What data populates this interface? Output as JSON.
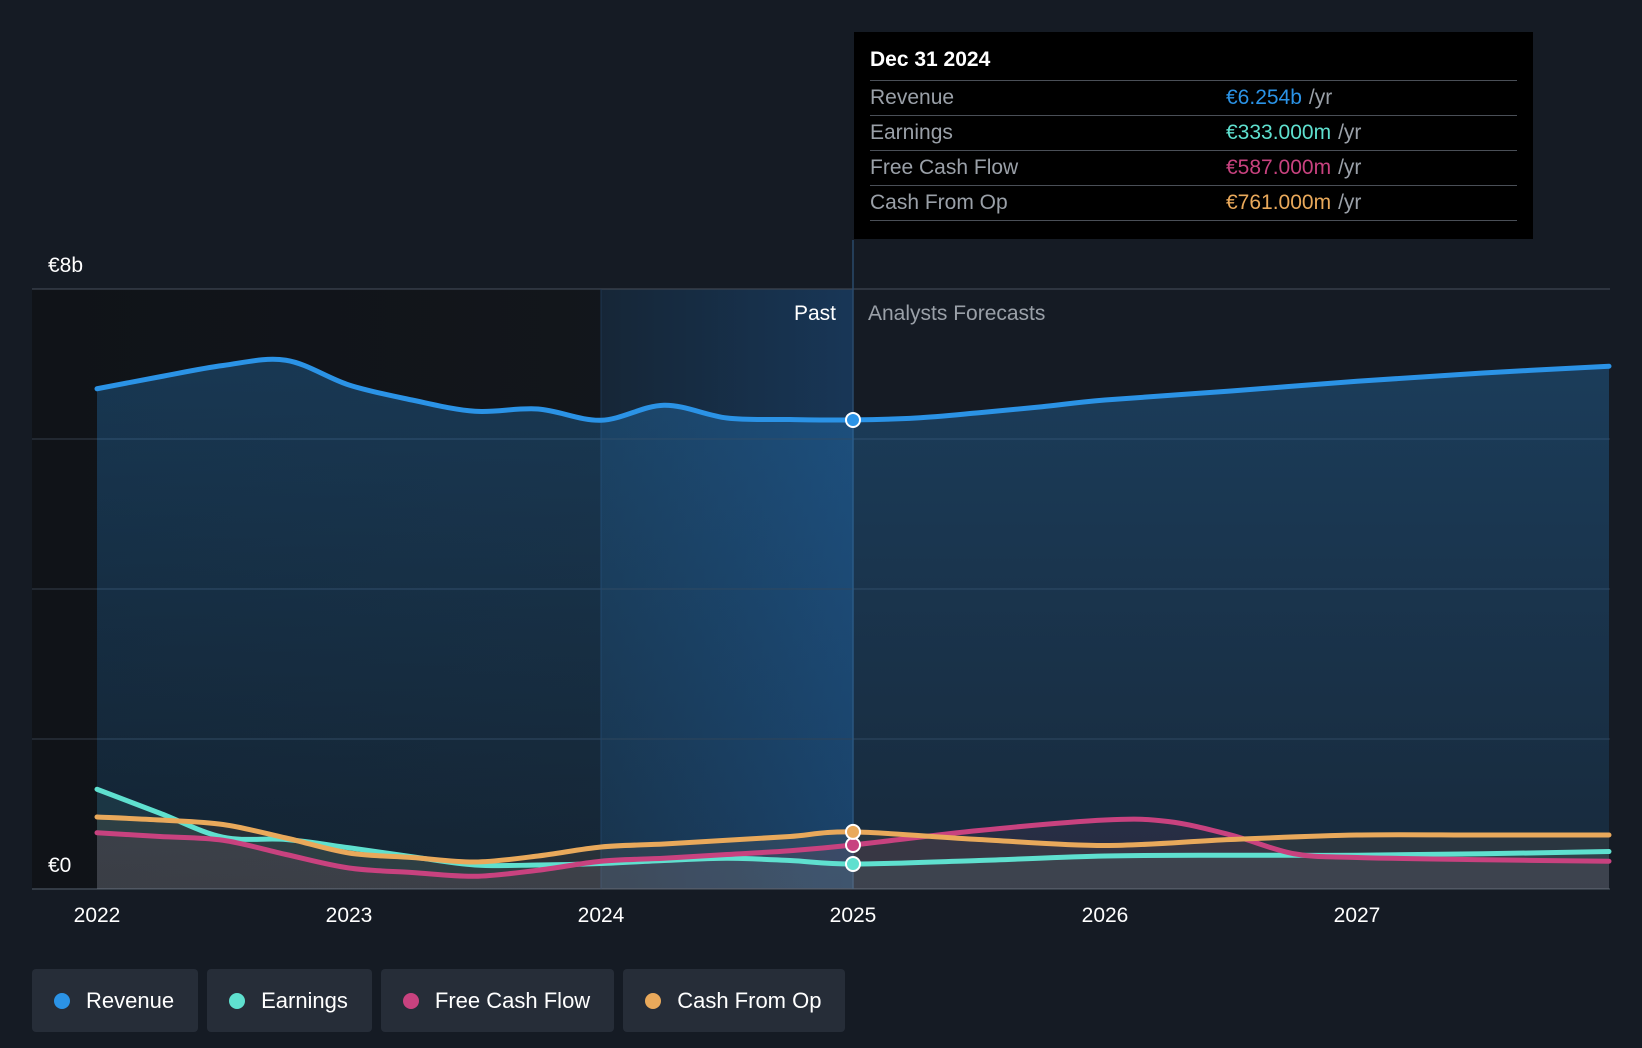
{
  "chart_data": {
    "type": "area",
    "y_unit_labels": {
      "top": "€8b",
      "bottom": "€0"
    },
    "ylim": [
      0,
      8
    ],
    "x_ticks": [
      "2022",
      "2023",
      "2024",
      "2025",
      "2026",
      "2027"
    ],
    "divider_labels": {
      "past": "Past",
      "forecast": "Analysts Forecasts"
    },
    "grid": true,
    "legend_position": "bottom",
    "series": [
      {
        "name": "Revenue",
        "color": "#2b93e6",
        "unit": "b",
        "points": [
          [
            2022.0,
            6.67
          ],
          [
            2022.25,
            6.83
          ],
          [
            2022.5,
            6.98
          ],
          [
            2022.75,
            7.05
          ],
          [
            2023.0,
            6.72
          ],
          [
            2023.25,
            6.52
          ],
          [
            2023.5,
            6.37
          ],
          [
            2023.75,
            6.4
          ],
          [
            2024.0,
            6.25
          ],
          [
            2024.25,
            6.45
          ],
          [
            2024.5,
            6.28
          ],
          [
            2024.75,
            6.26
          ],
          [
            2025.0,
            6.254
          ],
          [
            2025.25,
            6.28
          ],
          [
            2025.5,
            6.35
          ],
          [
            2025.75,
            6.43
          ],
          [
            2026.0,
            6.52
          ],
          [
            2026.5,
            6.64
          ],
          [
            2027.0,
            6.77
          ],
          [
            2027.5,
            6.88
          ],
          [
            2028.0,
            6.97
          ]
        ]
      },
      {
        "name": "Earnings",
        "color": "#5fe0cf",
        "unit": "m",
        "points": [
          [
            2022.0,
            1.33
          ],
          [
            2022.25,
            1.01
          ],
          [
            2022.5,
            0.69
          ],
          [
            2022.75,
            0.66
          ],
          [
            2023.0,
            0.55
          ],
          [
            2023.25,
            0.43
          ],
          [
            2023.5,
            0.32
          ],
          [
            2023.75,
            0.32
          ],
          [
            2024.0,
            0.34
          ],
          [
            2024.25,
            0.38
          ],
          [
            2024.5,
            0.41
          ],
          [
            2024.75,
            0.38
          ],
          [
            2025.0,
            0.333
          ],
          [
            2025.5,
            0.38
          ],
          [
            2026.0,
            0.44
          ],
          [
            2026.5,
            0.45
          ],
          [
            2027.0,
            0.45
          ],
          [
            2027.5,
            0.47
          ],
          [
            2028.0,
            0.5
          ]
        ]
      },
      {
        "name": "Free Cash Flow",
        "color": "#c8427f",
        "unit": "m",
        "points": [
          [
            2022.0,
            0.75
          ],
          [
            2022.25,
            0.7
          ],
          [
            2022.5,
            0.65
          ],
          [
            2022.75,
            0.46
          ],
          [
            2023.0,
            0.28
          ],
          [
            2023.25,
            0.22
          ],
          [
            2023.5,
            0.17
          ],
          [
            2023.75,
            0.25
          ],
          [
            2024.0,
            0.37
          ],
          [
            2024.25,
            0.41
          ],
          [
            2024.5,
            0.46
          ],
          [
            2024.75,
            0.51
          ],
          [
            2025.0,
            0.587
          ],
          [
            2025.5,
            0.78
          ],
          [
            2026.0,
            0.92
          ],
          [
            2026.25,
            0.9
          ],
          [
            2026.5,
            0.72
          ],
          [
            2026.75,
            0.47
          ],
          [
            2027.0,
            0.42
          ],
          [
            2027.5,
            0.39
          ],
          [
            2028.0,
            0.37
          ]
        ]
      },
      {
        "name": "Cash From Op",
        "color": "#e9a95b",
        "unit": "m",
        "points": [
          [
            2022.0,
            0.96
          ],
          [
            2022.25,
            0.92
          ],
          [
            2022.5,
            0.86
          ],
          [
            2022.75,
            0.68
          ],
          [
            2023.0,
            0.48
          ],
          [
            2023.25,
            0.42
          ],
          [
            2023.5,
            0.36
          ],
          [
            2023.75,
            0.44
          ],
          [
            2024.0,
            0.56
          ],
          [
            2024.25,
            0.6
          ],
          [
            2024.5,
            0.65
          ],
          [
            2024.75,
            0.7
          ],
          [
            2025.0,
            0.761
          ],
          [
            2025.5,
            0.66
          ],
          [
            2026.0,
            0.58
          ],
          [
            2026.5,
            0.66
          ],
          [
            2027.0,
            0.72
          ],
          [
            2027.5,
            0.72
          ],
          [
            2028.0,
            0.72
          ]
        ]
      }
    ],
    "highlight_x": 2025.0
  },
  "tooltip": {
    "date": "Dec 31 2024",
    "unit": "/yr",
    "rows": [
      {
        "label": "Revenue",
        "value": "€6.254b",
        "color": "#2b93e6"
      },
      {
        "label": "Earnings",
        "value": "€333.000m",
        "color": "#5fe0cf"
      },
      {
        "label": "Free Cash Flow",
        "value": "€587.000m",
        "color": "#c8427f"
      },
      {
        "label": "Cash From Op",
        "value": "€761.000m",
        "color": "#e9a95b"
      }
    ]
  },
  "legend": [
    {
      "label": "Revenue",
      "color": "#2b93e6"
    },
    {
      "label": "Earnings",
      "color": "#5fe0cf"
    },
    {
      "label": "Free Cash Flow",
      "color": "#c8427f"
    },
    {
      "label": "Cash From Op",
      "color": "#e9a95b"
    }
  ]
}
